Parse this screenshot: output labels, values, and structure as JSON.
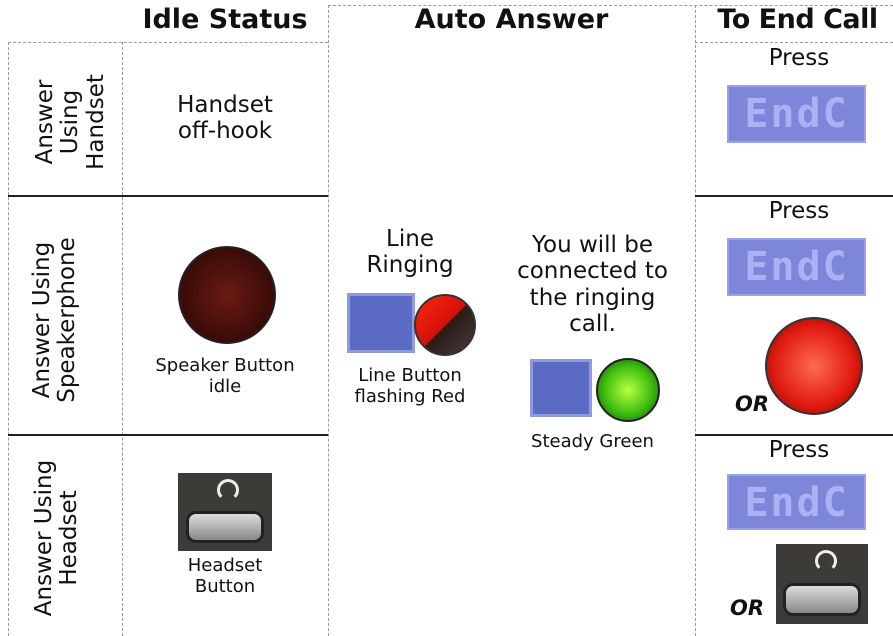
{
  "header": {
    "columns": [
      "Idle Status",
      "Auto Answer",
      "To End Call"
    ]
  },
  "rows": [
    {
      "label": "Answer Using Handset",
      "idle": "Handset off-hook",
      "end_call": {
        "press": "Press",
        "button": "EndC"
      }
    },
    {
      "label": "Answer Using Speakerphone",
      "idle": "Speaker Button idle",
      "end_call": {
        "press": "Press",
        "button": "EndC",
        "or": "OR"
      }
    },
    {
      "label": "Answer Using Headset",
      "idle": "Headset Button",
      "end_call": {
        "press": "Press",
        "button": "EndC",
        "or": "OR"
      }
    }
  ],
  "auto_answer": {
    "ringing": "Line Ringing",
    "ringing_caption": "Line Button flashing Red",
    "connected": "You will be connected to the ringing call.",
    "connected_caption": "Steady Green"
  }
}
